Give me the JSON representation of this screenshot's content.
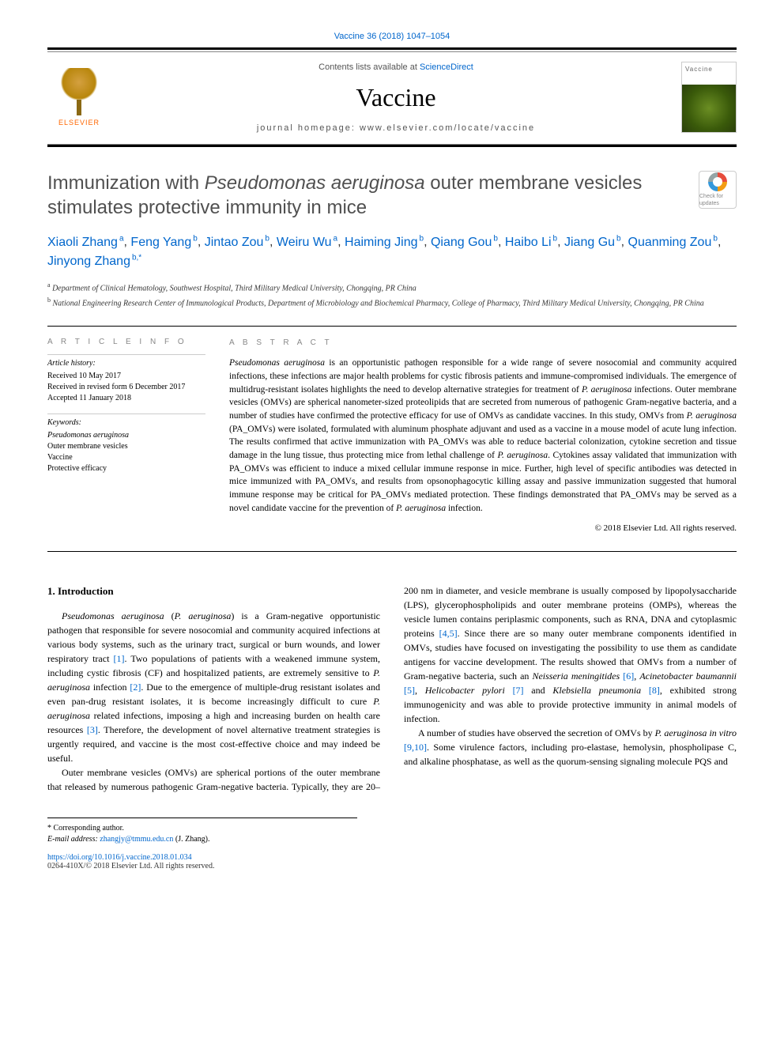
{
  "header": {
    "citation": "Vaccine 36 (2018) 1047–1054",
    "contents_prefix": "Contents lists available at ",
    "contents_link": "ScienceDirect",
    "journal_name": "Vaccine",
    "homepage_label": "journal homepage: www.elsevier.com/locate/vaccine",
    "publisher": "ELSEVIER",
    "cover_label": "Vaccine"
  },
  "title": {
    "pre_italic": "Immunization with ",
    "italic": "Pseudomonas aeruginosa",
    "post_italic": " outer membrane vesicles stimulates protective immunity in mice",
    "badge_label": "Check for updates"
  },
  "authors": [
    {
      "name": "Xiaoli Zhang",
      "aff": "a"
    },
    {
      "name": "Feng Yang",
      "aff": "b"
    },
    {
      "name": "Jintao Zou",
      "aff": "b"
    },
    {
      "name": "Weiru Wu",
      "aff": "a"
    },
    {
      "name": "Haiming Jing",
      "aff": "b"
    },
    {
      "name": "Qiang Gou",
      "aff": "b"
    },
    {
      "name": "Haibo Li",
      "aff": "b"
    },
    {
      "name": "Jiang Gu",
      "aff": "b"
    },
    {
      "name": "Quanming Zou",
      "aff": "b"
    },
    {
      "name": "Jinyong Zhang",
      "aff": "b,*"
    }
  ],
  "affiliations": {
    "a": "Department of Clinical Hematology, Southwest Hospital, Third Military Medical University, Chongqing, PR China",
    "b": "National Engineering Research Center of Immunological Products, Department of Microbiology and Biochemical Pharmacy, College of Pharmacy, Third Military Medical University, Chongqing, PR China"
  },
  "article_info": {
    "heading": "A R T I C L E   I N F O",
    "history_label": "Article history:",
    "received": "Received 10 May 2017",
    "revised": "Received in revised form 6 December 2017",
    "accepted": "Accepted 11 January 2018",
    "keywords_label": "Keywords:",
    "keywords": [
      "Pseudomonas aeruginosa",
      "Outer membrane vesicles",
      "Vaccine",
      "Protective efficacy"
    ]
  },
  "abstract": {
    "heading": "A B S T R A C T",
    "text": "Pseudomonas aeruginosa is an opportunistic pathogen responsible for a wide range of severe nosocomial and community acquired infections, these infections are major health problems for cystic fibrosis patients and immune-compromised individuals. The emergence of multidrug-resistant isolates highlights the need to develop alternative strategies for treatment of P. aeruginosa infections. Outer membrane vesicles (OMVs) are spherical nanometer-sized proteolipids that are secreted from numerous of pathogenic Gram-negative bacteria, and a number of studies have confirmed the protective efficacy for use of OMVs as candidate vaccines. In this study, OMVs from P. aeruginosa (PA_OMVs) were isolated, formulated with aluminum phosphate adjuvant and used as a vaccine in a mouse model of acute lung infection. The results confirmed that active immunization with PA_OMVs was able to reduce bacterial colonization, cytokine secretion and tissue damage in the lung tissue, thus protecting mice from lethal challenge of P. aeruginosa. Cytokines assay validated that immunization with PA_OMVs was efficient to induce a mixed cellular immune response in mice. Further, high level of specific antibodies was detected in mice immunized with PA_OMVs, and results from opsonophagocytic killing assay and passive immunization suggested that humoral immune response may be critical for PA_OMVs mediated protection. These findings demonstrated that PA_OMVs may be served as a novel candidate vaccine for the prevention of P. aeruginosa infection.",
    "copyright": "© 2018 Elsevier Ltd. All rights reserved."
  },
  "body": {
    "section_heading": "1. Introduction",
    "para1": "Pseudomonas aeruginosa (P. aeruginosa) is a Gram-negative opportunistic pathogen that responsible for severe nosocomial and community acquired infections at various body systems, such as the urinary tract, surgical or burn wounds, and lower respiratory tract [1]. Two populations of patients with a weakened immune system, including cystic fibrosis (CF) and hospitalized patients, are extremely sensitive to P. aeruginosa infection [2]. Due to the emergence of multiple-drug resistant isolates and even pan-drug resistant isolates, it is become increasingly difficult to cure P. aeruginosa related infections, imposing a high and increasing burden on health care resources [3]. Therefore, the development of novel alternative treatment strategies is urgently required, and vaccine is the most cost-effective choice and may indeed be useful.",
    "para2": "Outer membrane vesicles (OMVs) are spherical portions of the outer membrane that released by numerous pathogenic Gram-negative bacteria. Typically, they are 20–200 nm in diameter, and vesicle membrane is usually composed by lipopolysaccharide (LPS), glycerophospholipids and outer membrane proteins (OMPs), whereas the vesicle lumen contains periplasmic components, such as RNA, DNA and cytoplasmic proteins [4,5]. Since there are so many outer membrane components identified in OMVs, studies have focused on investigating the possibility to use them as candidate antigens for vaccine development. The results showed that OMVs from a number of Gram-negative bacteria, such an Neisseria meningitides [6], Acinetobacter baumannii [5], Helicobacter pylori [7] and Klebsiella pneumonia [8], exhibited strong immunogenicity and was able to provide protective immunity in animal models of infection.",
    "para3": "A number of studies have observed the secretion of OMVs by P. aeruginosa in vitro [9,10]. Some virulence factors, including pro-elastase, hemolysin, phospholipase C, and alkaline phosphatase, as well as the quorum-sensing signaling molecule PQS and"
  },
  "footer": {
    "corresponding": "* Corresponding author.",
    "email_label": "E-mail address: ",
    "email": "zhangjy@tmmu.edu.cn",
    "email_name": " (J. Zhang).",
    "doi": "https://doi.org/10.1016/j.vaccine.2018.01.034",
    "issn": "0264-410X/© 2018 Elsevier Ltd. All rights reserved."
  },
  "colors": {
    "link": "#0066cc",
    "text": "#000000",
    "heading_gray": "#505050",
    "orange": "#ff6600"
  }
}
